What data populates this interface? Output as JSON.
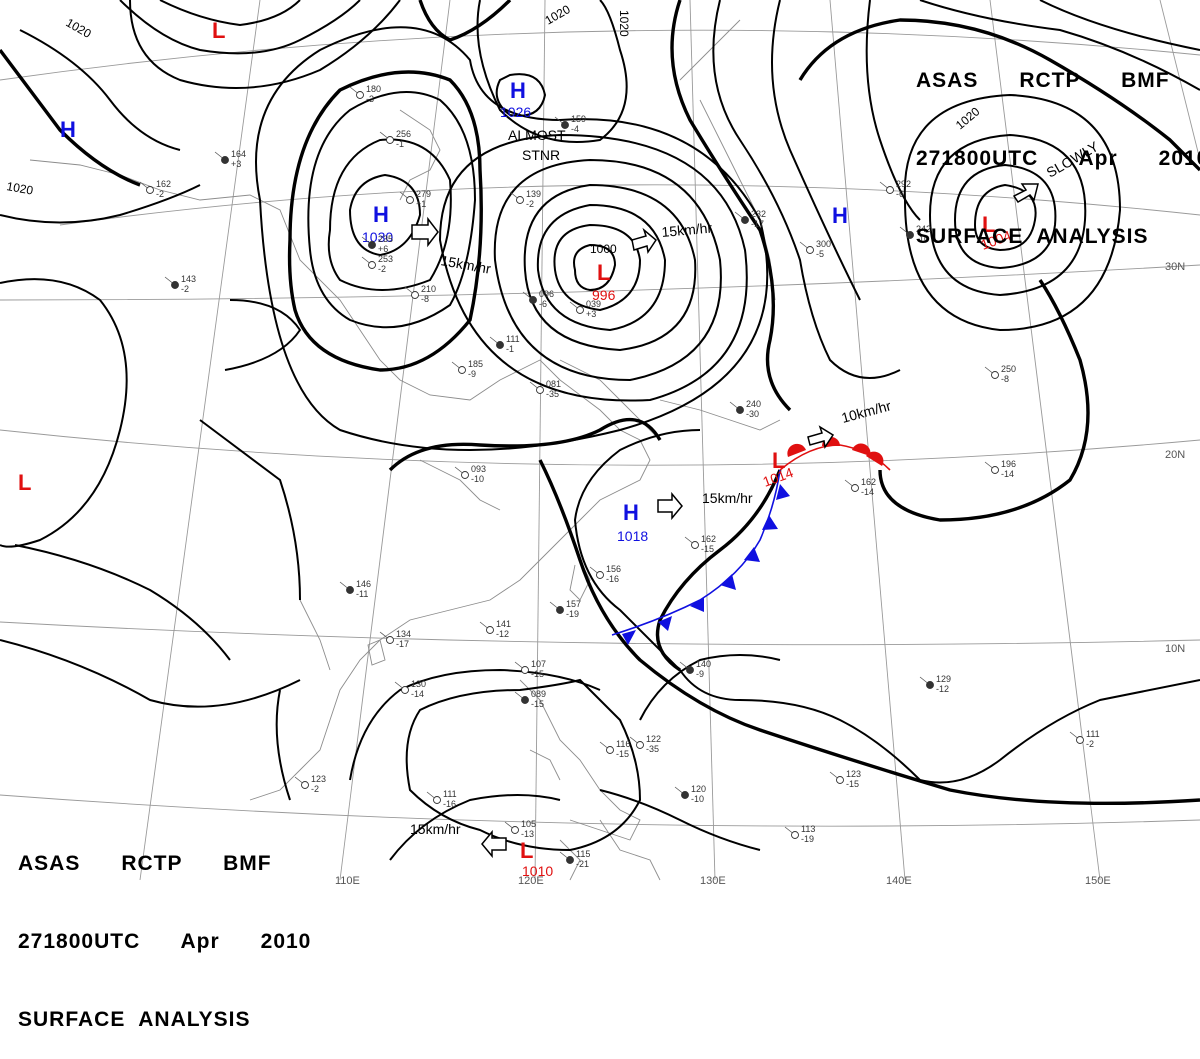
{
  "header_top": {
    "line1": "ASAS      RCTP      BMF",
    "line2": "271800UTC      Apr      2010",
    "line3": "SURFACE  ANALYSIS"
  },
  "header_bottom": {
    "line1": "ASAS      RCTP      BMF",
    "line2": "271800UTC      Apr      2010",
    "line3": "SURFACE  ANALYSIS"
  },
  "colors": {
    "high": "#1010e0",
    "low": "#e01010",
    "cold_front": "#1010e0",
    "warm_front": "#e01010",
    "isobar": "#000000"
  },
  "grid_labels": {
    "lon": [
      "110E",
      "120E",
      "130E",
      "140E",
      "150E"
    ],
    "lat": [
      "30N",
      "20N",
      "10N"
    ]
  },
  "pressure_systems": [
    {
      "type": "L",
      "value": ""
    },
    {
      "type": "H",
      "value": ""
    },
    {
      "type": "H",
      "value": "1026"
    },
    {
      "type": "H",
      "value": "1030"
    },
    {
      "type": "L",
      "value": "996"
    },
    {
      "type": "H",
      "value": ""
    },
    {
      "type": "L",
      "value": "1004"
    },
    {
      "type": "L",
      "value": ""
    },
    {
      "type": "H",
      "value": "1018"
    },
    {
      "type": "L",
      "value": "1014"
    },
    {
      "type": "L",
      "value": "1010"
    }
  ],
  "movement_labels": {
    "almost": "ALMOST",
    "stnr": "STNR",
    "h1030": "15km/hr",
    "l996": "15km/hr",
    "h1018": "15km/hr",
    "l1014": "10km/hr",
    "l1010": "15km/hr",
    "l1004": "SLOWLY"
  },
  "isobar_labels": [
    "1020",
    "1020",
    "1020",
    "1020",
    "1020",
    "1000"
  ],
  "stations": [
    {
      "a": "159",
      "b": "-4"
    },
    {
      "a": "256",
      "b": "-1"
    },
    {
      "a": "279",
      "b": "+1"
    },
    {
      "a": "235",
      "b": "+6"
    },
    {
      "a": "253",
      "b": "-2"
    },
    {
      "a": "180",
      "b": "-3"
    },
    {
      "a": "164",
      "b": "+3"
    },
    {
      "a": "162",
      "b": "-2"
    },
    {
      "a": "139",
      "b": "-2"
    },
    {
      "a": "096",
      "b": "-6"
    },
    {
      "a": "039",
      "b": "+3"
    },
    {
      "a": "185",
      "b": "-9"
    },
    {
      "a": "111",
      "b": "-1"
    },
    {
      "a": "081",
      "b": "-35"
    },
    {
      "a": "093",
      "b": "-10"
    },
    {
      "a": "146",
      "b": "-11"
    },
    {
      "a": "134",
      "b": "-17"
    },
    {
      "a": "141",
      "b": "-12"
    },
    {
      "a": "157",
      "b": "-19"
    },
    {
      "a": "156",
      "b": "-16"
    },
    {
      "a": "162",
      "b": "-15"
    },
    {
      "a": "140",
      "b": "-9"
    },
    {
      "a": "130",
      "b": "-14"
    },
    {
      "a": "107",
      "b": "-15"
    },
    {
      "a": "089",
      "b": "-15"
    },
    {
      "a": "116",
      "b": "-15"
    },
    {
      "a": "122",
      "b": "-35"
    },
    {
      "a": "120",
      "b": "-10"
    },
    {
      "a": "111",
      "b": "-16"
    },
    {
      "a": "105",
      "b": "-13"
    },
    {
      "a": "115",
      "b": "-21"
    },
    {
      "a": "113",
      "b": "-19"
    },
    {
      "a": "123",
      "b": "-15"
    },
    {
      "a": "129",
      "b": "-12"
    },
    {
      "a": "111",
      "b": "-2"
    },
    {
      "a": "162",
      "b": "-14"
    },
    {
      "a": "232",
      "b": "-17"
    },
    {
      "a": "300",
      "b": "-5"
    },
    {
      "a": "292",
      "b": "-6"
    },
    {
      "a": "242",
      "b": "-10"
    },
    {
      "a": "250",
      "b": "-8"
    },
    {
      "a": "196",
      "b": "-14"
    },
    {
      "a": "143",
      "b": "-2"
    },
    {
      "a": "123",
      "b": "-2"
    },
    {
      "a": "210",
      "b": "-8"
    },
    {
      "a": "240",
      "b": "-30"
    }
  ]
}
